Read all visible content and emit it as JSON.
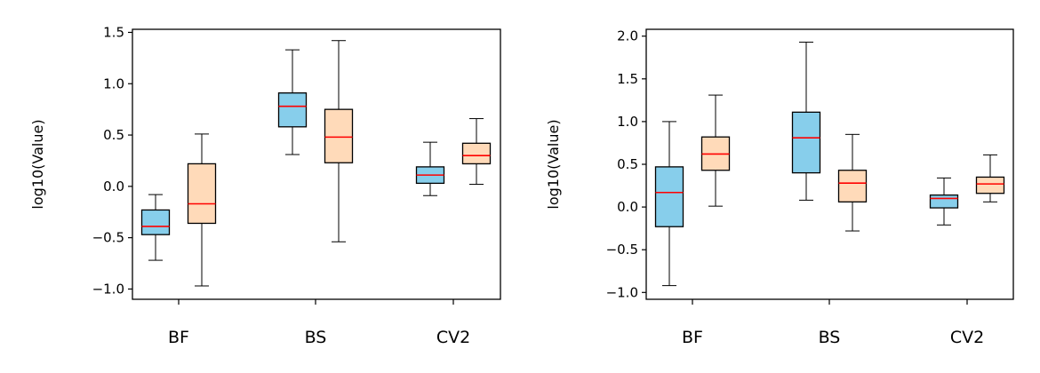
{
  "chart_data": [
    {
      "type": "box",
      "ylabel": "log10(Value)",
      "xlabel": "",
      "title": "",
      "categories": [
        "BF",
        "BS",
        "CV2"
      ],
      "ylim": [
        -1.1,
        1.53
      ],
      "yticks": [
        -1.0,
        -0.5,
        0.0,
        0.5,
        1.0,
        1.5
      ],
      "ytick_labels": [
        "−1.0",
        "−0.5",
        "0.0",
        "0.5",
        "1.0",
        "1.5"
      ],
      "grid": false,
      "series": [
        {
          "color": "#87ceeb",
          "boxes": [
            {
              "category": "BF",
              "whislo": -0.72,
              "q1": -0.47,
              "med": -0.39,
              "q3": -0.23,
              "whishi": -0.08
            },
            {
              "category": "BS",
              "whislo": 0.31,
              "q1": 0.58,
              "med": 0.78,
              "q3": 0.91,
              "whishi": 1.33
            },
            {
              "category": "CV2",
              "whislo": -0.09,
              "q1": 0.03,
              "med": 0.11,
              "q3": 0.19,
              "whishi": 0.43
            }
          ]
        },
        {
          "color": "#ffdab9",
          "boxes": [
            {
              "category": "BF",
              "whislo": -0.97,
              "q1": -0.36,
              "med": -0.17,
              "q3": 0.22,
              "whishi": 0.51
            },
            {
              "category": "BS",
              "whislo": -0.54,
              "q1": 0.23,
              "med": 0.48,
              "q3": 0.75,
              "whishi": 1.42
            },
            {
              "category": "CV2",
              "whislo": 0.02,
              "q1": 0.22,
              "med": 0.3,
              "q3": 0.42,
              "whishi": 0.66
            }
          ]
        }
      ]
    },
    {
      "type": "box",
      "ylabel": "log10(Value)",
      "xlabel": "",
      "title": "",
      "categories": [
        "BF",
        "BS",
        "CV2"
      ],
      "ylim": [
        -1.08,
        2.08
      ],
      "yticks": [
        -1.0,
        -0.5,
        0.0,
        0.5,
        1.0,
        1.5,
        2.0
      ],
      "ytick_labels": [
        "−1.0",
        "−0.5",
        "0.0",
        "0.5",
        "1.0",
        "1.5",
        "2.0"
      ],
      "grid": false,
      "series": [
        {
          "color": "#87ceeb",
          "boxes": [
            {
              "category": "BF",
              "whislo": -0.92,
              "q1": -0.23,
              "med": 0.17,
              "q3": 0.47,
              "whishi": 1.0
            },
            {
              "category": "BS",
              "whislo": 0.08,
              "q1": 0.4,
              "med": 0.81,
              "q3": 1.11,
              "whishi": 1.93
            },
            {
              "category": "CV2",
              "whislo": -0.21,
              "q1": -0.01,
              "med": 0.1,
              "q3": 0.14,
              "whishi": 0.34
            }
          ]
        },
        {
          "color": "#ffdab9",
          "boxes": [
            {
              "category": "BF",
              "whislo": 0.01,
              "q1": 0.43,
              "med": 0.62,
              "q3": 0.82,
              "whishi": 1.31
            },
            {
              "category": "BS",
              "whislo": -0.28,
              "q1": 0.06,
              "med": 0.28,
              "q3": 0.43,
              "whishi": 0.85
            },
            {
              "category": "CV2",
              "whislo": 0.06,
              "q1": 0.16,
              "med": 0.27,
              "q3": 0.35,
              "whishi": 0.61
            }
          ]
        }
      ],
      "median_color": "#ff0000"
    }
  ]
}
